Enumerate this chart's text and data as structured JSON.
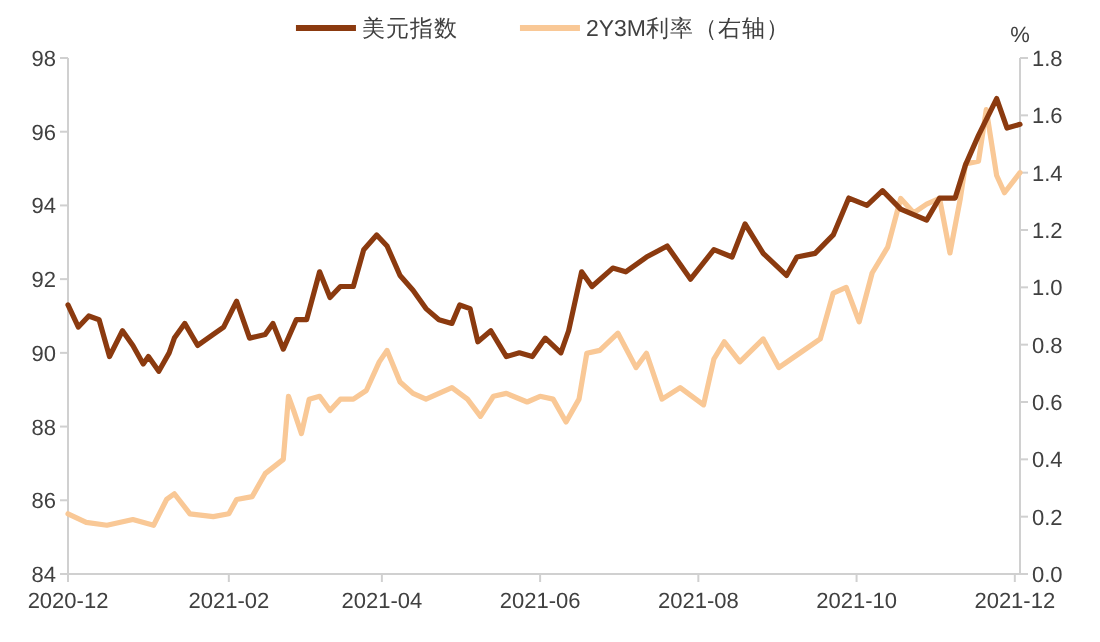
{
  "chart_data": {
    "type": "line",
    "y2label": "%",
    "legend": "top",
    "grid": false,
    "xlim": [
      "2020-12-01",
      "2021-12-03"
    ],
    "xticks": [
      {
        "value": "2020-12-01",
        "label": "2020-12"
      },
      {
        "value": "2021-02-01",
        "label": "2021-02"
      },
      {
        "value": "2021-04-01",
        "label": "2021-04"
      },
      {
        "value": "2021-06-01",
        "label": "2021-06"
      },
      {
        "value": "2021-08-01",
        "label": "2021-08"
      },
      {
        "value": "2021-10-01",
        "label": "2021-10"
      },
      {
        "value": "2021-12-01",
        "label": "2021-12"
      }
    ],
    "ylim": [
      84,
      98
    ],
    "yticks": [
      84,
      86,
      88,
      90,
      92,
      94,
      96,
      98
    ],
    "y2lim": [
      0,
      1.8
    ],
    "y2ticks": [
      {
        "value": 0,
        "label": "0.0"
      },
      0.2,
      0.4,
      0.6,
      0.8,
      {
        "value": 1,
        "label": "1.0"
      },
      1.2,
      1.4,
      1.6,
      1.8
    ],
    "series": [
      {
        "name": "美元指数",
        "color": "#8b3a0f",
        "x": [
          "2020-12-01",
          "2020-12-05",
          "2020-12-09",
          "2020-12-13",
          "2020-12-17",
          "2020-12-22",
          "2020-12-26",
          "2020-12-30",
          "2021-01-01",
          "2021-01-05",
          "2021-01-09",
          "2021-01-11",
          "2021-01-15",
          "2021-01-20",
          "2021-01-26",
          "2021-01-30",
          "2021-02-04",
          "2021-02-09",
          "2021-02-15",
          "2021-02-18",
          "2021-02-22",
          "2021-02-27",
          "2021-03-03",
          "2021-03-08",
          "2021-03-12",
          "2021-03-16",
          "2021-03-21",
          "2021-03-25",
          "2021-03-30",
          "2021-04-03",
          "2021-04-08",
          "2021-04-13",
          "2021-04-18",
          "2021-04-23",
          "2021-04-28",
          "2021-05-01",
          "2021-05-05",
          "2021-05-08",
          "2021-05-13",
          "2021-05-19",
          "2021-05-24",
          "2021-05-29",
          "2021-06-03",
          "2021-06-09",
          "2021-06-12",
          "2021-06-17",
          "2021-06-21",
          "2021-06-29",
          "2021-07-04",
          "2021-07-12",
          "2021-07-20",
          "2021-07-29",
          "2021-08-07",
          "2021-08-14",
          "2021-08-19",
          "2021-08-26",
          "2021-09-04",
          "2021-09-08",
          "2021-09-15",
          "2021-09-22",
          "2021-09-28",
          "2021-10-05",
          "2021-10-11",
          "2021-10-18",
          "2021-10-28",
          "2021-11-02",
          "2021-11-08",
          "2021-11-12",
          "2021-11-17",
          "2021-11-24",
          "2021-11-28",
          "2021-12-03"
        ],
        "values": [
          91.3,
          90.7,
          91.0,
          90.9,
          89.9,
          90.6,
          90.2,
          89.7,
          89.9,
          89.5,
          90.0,
          90.4,
          90.8,
          90.2,
          90.5,
          90.7,
          91.4,
          90.4,
          90.5,
          90.8,
          90.1,
          90.9,
          90.9,
          92.2,
          91.5,
          91.8,
          91.8,
          92.8,
          93.2,
          92.9,
          92.1,
          91.7,
          91.2,
          90.9,
          90.8,
          91.3,
          91.2,
          90.3,
          90.6,
          89.9,
          90.0,
          89.9,
          90.4,
          90.0,
          90.6,
          92.2,
          91.8,
          92.3,
          92.2,
          92.6,
          92.9,
          92.0,
          92.8,
          92.6,
          93.5,
          92.7,
          92.1,
          92.6,
          92.7,
          93.2,
          94.2,
          94.0,
          94.4,
          93.9,
          93.6,
          94.2,
          94.2,
          95.1,
          95.9,
          96.9,
          96.1,
          96.2
        ]
      },
      {
        "name": "2Y3M利率（右轴）",
        "color": "#f9c896",
        "axis": "y2",
        "x": [
          "2020-12-01",
          "2020-12-08",
          "2020-12-16",
          "2020-12-26",
          "2021-01-03",
          "2021-01-08",
          "2021-01-11",
          "2021-01-17",
          "2021-01-26",
          "2021-02-01",
          "2021-02-04",
          "2021-02-10",
          "2021-02-15",
          "2021-02-22",
          "2021-02-24",
          "2021-02-26",
          "2021-03-01",
          "2021-03-04",
          "2021-03-08",
          "2021-03-12",
          "2021-03-16",
          "2021-03-21",
          "2021-03-26",
          "2021-03-31",
          "2021-04-03",
          "2021-04-08",
          "2021-04-13",
          "2021-04-18",
          "2021-04-23",
          "2021-04-28",
          "2021-05-04",
          "2021-05-09",
          "2021-05-14",
          "2021-05-19",
          "2021-05-27",
          "2021-06-01",
          "2021-06-06",
          "2021-06-11",
          "2021-06-16",
          "2021-06-19",
          "2021-06-24",
          "2021-07-01",
          "2021-07-08",
          "2021-07-12",
          "2021-07-18",
          "2021-07-25",
          "2021-08-03",
          "2021-08-07",
          "2021-08-11",
          "2021-08-17",
          "2021-08-26",
          "2021-09-01",
          "2021-09-09",
          "2021-09-17",
          "2021-09-22",
          "2021-09-27",
          "2021-10-02",
          "2021-10-07",
          "2021-10-13",
          "2021-10-18",
          "2021-10-23",
          "2021-10-28",
          "2021-11-02",
          "2021-11-06",
          "2021-11-10",
          "2021-11-12",
          "2021-11-17",
          "2021-11-20",
          "2021-11-24",
          "2021-11-27",
          "2021-12-03"
        ],
        "values": [
          0.21,
          0.18,
          0.17,
          0.19,
          0.17,
          0.26,
          0.28,
          0.21,
          0.2,
          0.21,
          0.26,
          0.27,
          0.35,
          0.4,
          0.62,
          0.57,
          0.49,
          0.61,
          0.62,
          0.57,
          0.61,
          0.61,
          0.64,
          0.74,
          0.78,
          0.67,
          0.63,
          0.61,
          0.63,
          0.65,
          0.61,
          0.55,
          0.62,
          0.63,
          0.6,
          0.62,
          0.61,
          0.53,
          0.61,
          0.77,
          0.78,
          0.84,
          0.72,
          0.77,
          0.61,
          0.65,
          0.59,
          0.75,
          0.81,
          0.74,
          0.82,
          0.72,
          0.77,
          0.82,
          0.98,
          1.0,
          0.88,
          1.05,
          1.14,
          1.31,
          1.26,
          1.29,
          1.31,
          1.12,
          1.31,
          1.43,
          1.44,
          1.62,
          1.39,
          1.33,
          1.4
        ]
      }
    ]
  }
}
